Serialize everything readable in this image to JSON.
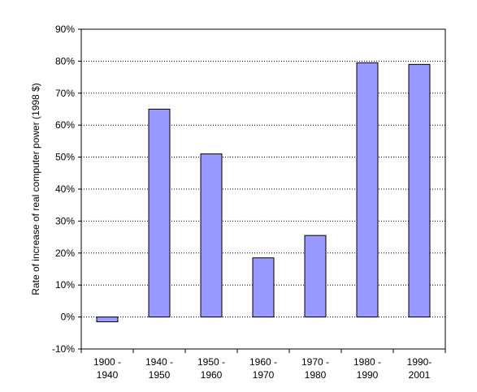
{
  "chart_data": {
    "type": "bar",
    "categories": [
      [
        "1900 -",
        "1940"
      ],
      [
        "1940 -",
        "1950"
      ],
      [
        "1950 -",
        "1960"
      ],
      [
        "1960 -",
        "1970"
      ],
      [
        "1970 -",
        "1980"
      ],
      [
        "1980 -",
        "1990"
      ],
      [
        "1990-",
        "2001"
      ]
    ],
    "values": [
      -1.5,
      65,
      51,
      18.5,
      25.5,
      79.5,
      79
    ],
    "ylabel": "Rate of increase of real computer power (1998 $)",
    "ylim": [
      -10,
      90
    ],
    "yticks": [
      "-10%",
      "0%",
      "10%",
      "20%",
      "30%",
      "40%",
      "50%",
      "60%",
      "70%",
      "80%",
      "90%"
    ],
    "grid": "dotted horizontal",
    "colors": {
      "bar_fill": "#9999ff",
      "bar_stroke": "#000000",
      "grid": "#000000"
    }
  }
}
